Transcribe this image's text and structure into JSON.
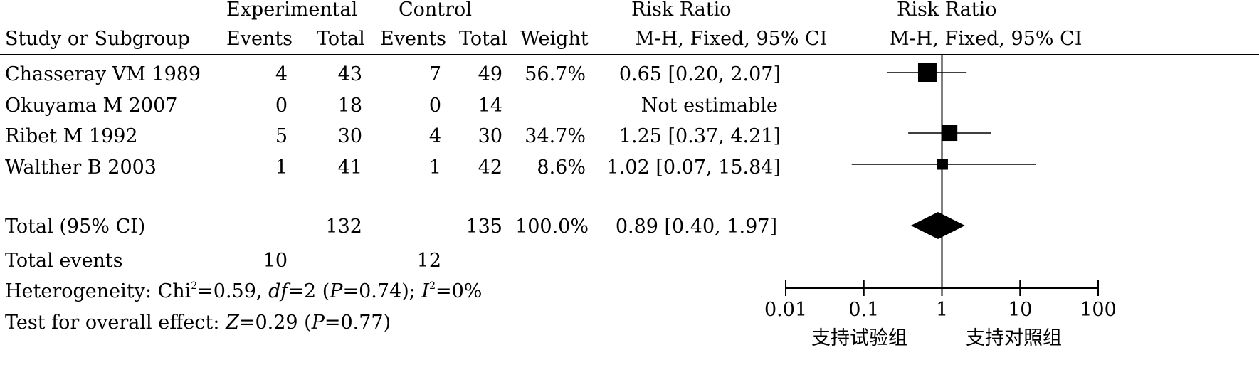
{
  "header": {
    "group1": "Experimental",
    "group2": "Control",
    "effect_left": "Risk Ratio",
    "effect_right": "Risk Ratio",
    "col_study": "Study or Subgroup",
    "col_events1": "Events",
    "col_total1": "Total",
    "col_events2": "Events",
    "col_total2": "Total",
    "col_weight": "Weight",
    "method_left": "M-H, Fixed, 95% CI",
    "method_right": "M-H, Fixed, 95% CI"
  },
  "studies": [
    {
      "name": "Chasseray VM 1989",
      "events1": "4",
      "total1": "43",
      "events2": "7",
      "total2": "49",
      "weight": "56.7%",
      "ci_text": "0.65 [0.20, 2.07]"
    },
    {
      "name": "Okuyama M 2007",
      "events1": "0",
      "total1": "18",
      "events2": "0",
      "total2": "14",
      "weight": "",
      "ci_text": "Not estimable"
    },
    {
      "name": "Ribet M 1992",
      "events1": "5",
      "total1": "30",
      "events2": "4",
      "total2": "30",
      "weight": "34.7%",
      "ci_text": "1.25 [0.37, 4.21]"
    },
    {
      "name": "Walther B 2003",
      "events1": "1",
      "total1": "41",
      "events2": "1",
      "total2": "42",
      "weight": "8.6%",
      "ci_text": "1.02 [0.07, 15.84]"
    }
  ],
  "total": {
    "label": "Total (95% CI)",
    "total1": "132",
    "total2": "135",
    "weight": "100.0%",
    "ci_text": "0.89 [0.40, 1.97]"
  },
  "events": {
    "label": "Total events",
    "events1": "10",
    "events2": "12"
  },
  "heterogeneity": {
    "prefix": "Heterogeneity: Chi",
    "sup1": "2",
    "chi_value": "=0.59, ",
    "df_label": "df",
    "df_value": "=2 (",
    "p_label": "P",
    "p_value": "=0.74); ",
    "i_label": "I",
    "sup2": "2",
    "i_value": "=0%"
  },
  "overall": {
    "prefix": "Test for overall effect: ",
    "z_label": "Z",
    "z_value": "=0.29 (",
    "p_label": "P",
    "p_value": "=0.77)"
  },
  "axis": {
    "favours_left": "支持试验组",
    "favours_right": "支持对照组"
  },
  "chart_data": {
    "type": "forest",
    "x_scale": "log",
    "xlim": [
      0.01,
      100
    ],
    "ticks": [
      0.01,
      0.1,
      1,
      10,
      100
    ],
    "tick_labels": [
      "0.01",
      "0.1",
      "1",
      "10",
      "100"
    ],
    "null_line": 1,
    "studies": [
      {
        "name": "Chasseray VM 1989",
        "rr": 0.65,
        "lo": 0.2,
        "hi": 2.07,
        "weight": 56.7
      },
      {
        "name": "Okuyama M 2007",
        "rr": null,
        "lo": null,
        "hi": null,
        "weight": 0
      },
      {
        "name": "Ribet M 1992",
        "rr": 1.25,
        "lo": 0.37,
        "hi": 4.21,
        "weight": 34.7
      },
      {
        "name": "Walther B 2003",
        "rr": 1.02,
        "lo": 0.07,
        "hi": 15.84,
        "weight": 8.6
      }
    ],
    "pooled": {
      "rr": 0.89,
      "lo": 0.4,
      "hi": 1.97
    }
  }
}
